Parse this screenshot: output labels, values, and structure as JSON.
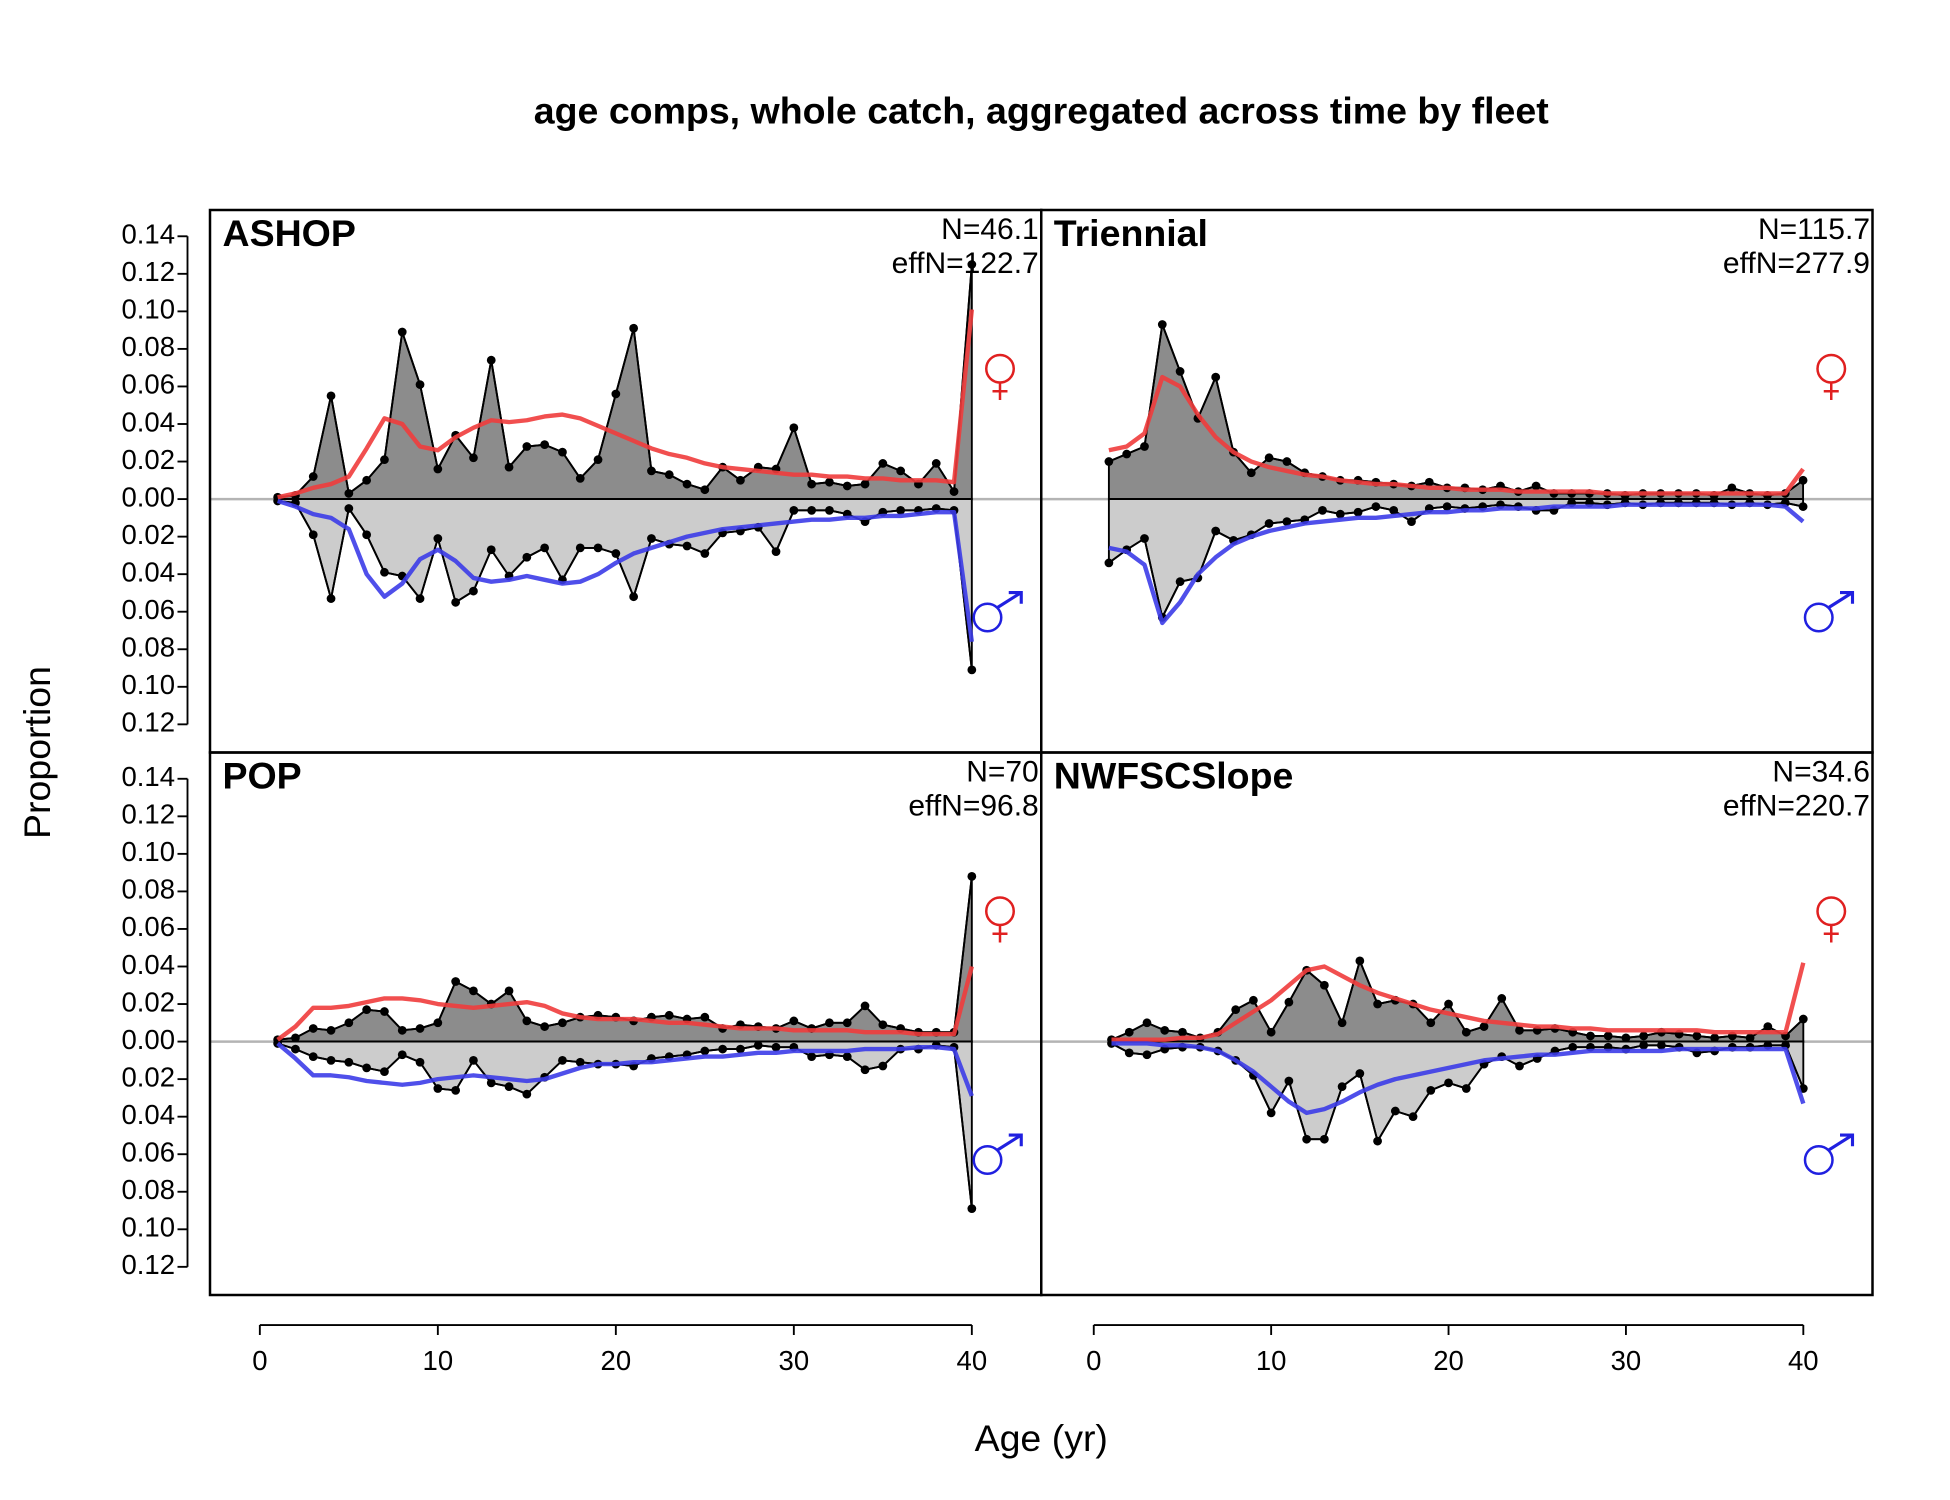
{
  "title": "age comps, whole catch, aggregated across time by fleet",
  "x_label": "Age (yr)",
  "y_label": "Proportion",
  "chart_data": [
    {
      "type": "area",
      "title": "ASHOP",
      "annotations": [
        "N=46.1",
        "effN=122.7"
      ],
      "xlim": [
        -2.8,
        43.9
      ],
      "ylim": [
        -0.135,
        0.154
      ],
      "yticks": [
        0.14,
        0.12,
        {
          "value": 0.1,
          "label": "0.10"
        },
        0.08,
        0.06,
        0.04,
        0.02,
        {
          "value": 0,
          "label": "0.00"
        },
        {
          "value": -0.02,
          "label": "0.02"
        },
        {
          "value": -0.04,
          "label": "0.04"
        },
        {
          "value": -0.06,
          "label": "0.06"
        },
        {
          "value": -0.08,
          "label": "0.08"
        },
        {
          "value": -0.1,
          "label": "0.10"
        },
        {
          "value": -0.12,
          "label": "0.12"
        }
      ],
      "x": [
        1,
        2,
        3,
        4,
        5,
        6,
        7,
        8,
        9,
        10,
        11,
        12,
        13,
        14,
        15,
        16,
        17,
        18,
        19,
        20,
        21,
        22,
        23,
        24,
        25,
        26,
        27,
        28,
        29,
        30,
        31,
        32,
        33,
        34,
        35,
        36,
        37,
        38,
        39,
        40
      ],
      "series": [
        {
          "style": "area",
          "color": "#8c8c8c",
          "values": [
            0.001,
            0.002,
            0.012,
            0.055,
            0.003,
            0.01,
            0.021,
            0.089,
            0.061,
            0.016,
            0.034,
            0.022,
            0.074,
            0.017,
            0.028,
            0.029,
            0.025,
            0.011,
            0.021,
            0.056,
            0.091,
            0.015,
            0.013,
            0.008,
            0.005,
            0.017,
            0.01,
            0.017,
            0.016,
            0.038,
            0.008,
            0.009,
            0.007,
            0.008,
            0.019,
            0.015,
            0.008,
            0.019,
            0.004,
            0.125
          ]
        },
        {
          "style": "area",
          "color": "#cccccc",
          "values": [
            -0.001,
            -0.002,
            -0.019,
            -0.053,
            -0.005,
            -0.019,
            -0.039,
            -0.041,
            -0.053,
            -0.021,
            -0.055,
            -0.049,
            -0.027,
            -0.041,
            -0.031,
            -0.026,
            -0.043,
            -0.026,
            -0.026,
            -0.029,
            -0.052,
            -0.021,
            -0.024,
            -0.025,
            -0.029,
            -0.018,
            -0.017,
            -0.015,
            -0.028,
            -0.006,
            -0.006,
            -0.006,
            -0.008,
            -0.012,
            -0.007,
            -0.006,
            -0.006,
            -0.005,
            -0.006,
            -0.091
          ]
        },
        {
          "style": "line",
          "color": "#f03c3c",
          "values": [
            0.001,
            0.003,
            0.006,
            0.008,
            0.012,
            0.027,
            0.043,
            0.04,
            0.028,
            0.026,
            0.033,
            0.038,
            0.042,
            0.041,
            0.042,
            0.044,
            0.045,
            0.043,
            0.039,
            0.035,
            0.031,
            0.027,
            0.024,
            0.022,
            0.019,
            0.017,
            0.016,
            0.015,
            0.014,
            0.013,
            0.013,
            0.012,
            0.012,
            0.011,
            0.011,
            0.01,
            0.01,
            0.01,
            0.009,
            0.101
          ]
        },
        {
          "style": "line",
          "color": "#3c3ce8",
          "values": [
            -0.001,
            -0.004,
            -0.008,
            -0.01,
            -0.016,
            -0.04,
            -0.052,
            -0.045,
            -0.032,
            -0.027,
            -0.033,
            -0.042,
            -0.044,
            -0.043,
            -0.041,
            -0.043,
            -0.045,
            -0.044,
            -0.04,
            -0.034,
            -0.029,
            -0.026,
            -0.023,
            -0.02,
            -0.018,
            -0.016,
            -0.015,
            -0.014,
            -0.013,
            -0.012,
            -0.011,
            -0.011,
            -0.01,
            -0.01,
            -0.009,
            -0.009,
            -0.008,
            -0.007,
            -0.007,
            -0.076
          ]
        }
      ]
    },
    {
      "type": "area",
      "title": "Triennial",
      "annotations": [
        "N=115.7",
        "effN=277.9"
      ],
      "xlim": [
        -2.8,
        43.9
      ],
      "ylim": [
        -0.135,
        0.154
      ],
      "x": [
        1,
        2,
        3,
        4,
        5,
        6,
        7,
        8,
        9,
        10,
        11,
        12,
        13,
        14,
        15,
        16,
        17,
        18,
        19,
        20,
        21,
        22,
        23,
        24,
        25,
        26,
        27,
        28,
        29,
        30,
        31,
        32,
        33,
        34,
        35,
        36,
        37,
        38,
        39,
        40
      ],
      "series": [
        {
          "style": "area",
          "color": "#8c8c8c",
          "values": [
            0.02,
            0.024,
            0.028,
            0.093,
            0.068,
            0.043,
            0.065,
            0.025,
            0.014,
            0.022,
            0.02,
            0.014,
            0.012,
            0.01,
            0.01,
            0.009,
            0.008,
            0.007,
            0.009,
            0.006,
            0.006,
            0.005,
            0.007,
            0.004,
            0.007,
            0.003,
            0.003,
            0.003,
            0.003,
            0.002,
            0.003,
            0.003,
            0.003,
            0.003,
            0.002,
            0.006,
            0.003,
            0.002,
            0.003,
            0.01
          ]
        },
        {
          "style": "area",
          "color": "#cccccc",
          "values": [
            -0.034,
            -0.027,
            -0.021,
            -0.063,
            -0.044,
            -0.042,
            -0.017,
            -0.022,
            -0.019,
            -0.013,
            -0.012,
            -0.011,
            -0.006,
            -0.008,
            -0.007,
            -0.004,
            -0.006,
            -0.012,
            -0.005,
            -0.004,
            -0.005,
            -0.004,
            -0.003,
            -0.004,
            -0.006,
            -0.006,
            -0.002,
            -0.002,
            -0.003,
            -0.002,
            -0.003,
            -0.002,
            -0.002,
            -0.002,
            -0.002,
            -0.003,
            -0.002,
            -0.003,
            -0.002,
            -0.004
          ]
        },
        {
          "style": "line",
          "color": "#f03c3c",
          "values": [
            0.026,
            0.028,
            0.035,
            0.065,
            0.06,
            0.045,
            0.033,
            0.025,
            0.02,
            0.017,
            0.015,
            0.013,
            0.012,
            0.01,
            0.009,
            0.008,
            0.008,
            0.007,
            0.006,
            0.006,
            0.005,
            0.005,
            0.005,
            0.004,
            0.004,
            0.004,
            0.004,
            0.004,
            0.003,
            0.003,
            0.003,
            0.003,
            0.003,
            0.003,
            0.003,
            0.003,
            0.003,
            0.003,
            0.003,
            0.016
          ]
        },
        {
          "style": "line",
          "color": "#3c3ce8",
          "values": [
            -0.026,
            -0.028,
            -0.035,
            -0.066,
            -0.055,
            -0.04,
            -0.031,
            -0.024,
            -0.02,
            -0.017,
            -0.015,
            -0.013,
            -0.012,
            -0.011,
            -0.01,
            -0.01,
            -0.009,
            -0.008,
            -0.007,
            -0.007,
            -0.006,
            -0.006,
            -0.005,
            -0.005,
            -0.005,
            -0.004,
            -0.004,
            -0.004,
            -0.004,
            -0.003,
            -0.003,
            -0.003,
            -0.003,
            -0.003,
            -0.003,
            -0.003,
            -0.003,
            -0.003,
            -0.004,
            -0.012
          ]
        }
      ]
    },
    {
      "type": "area",
      "title": "POP",
      "annotations": [
        "N=70",
        "effN=96.8"
      ],
      "xlim": [
        -2.8,
        43.9
      ],
      "ylim": [
        -0.135,
        0.154
      ],
      "yticks": [
        0.14,
        0.12,
        {
          "value": 0.1,
          "label": "0.10"
        },
        0.08,
        0.06,
        0.04,
        0.02,
        {
          "value": 0,
          "label": "0.00"
        },
        {
          "value": -0.02,
          "label": "0.02"
        },
        {
          "value": -0.04,
          "label": "0.04"
        },
        {
          "value": -0.06,
          "label": "0.06"
        },
        {
          "value": -0.08,
          "label": "0.08"
        },
        {
          "value": -0.1,
          "label": "0.10"
        },
        {
          "value": -0.12,
          "label": "0.12"
        }
      ],
      "xticks": [
        0,
        10,
        20,
        30,
        40
      ],
      "x": [
        1,
        2,
        3,
        4,
        5,
        6,
        7,
        8,
        9,
        10,
        11,
        12,
        13,
        14,
        15,
        16,
        17,
        18,
        19,
        20,
        21,
        22,
        23,
        24,
        25,
        26,
        27,
        28,
        29,
        30,
        31,
        32,
        33,
        34,
        35,
        36,
        37,
        38,
        39,
        40
      ],
      "series": [
        {
          "style": "area",
          "color": "#8c8c8c",
          "values": [
            0.001,
            0.002,
            0.007,
            0.006,
            0.01,
            0.017,
            0.016,
            0.006,
            0.007,
            0.01,
            0.032,
            0.027,
            0.02,
            0.027,
            0.011,
            0.008,
            0.01,
            0.013,
            0.014,
            0.013,
            0.011,
            0.013,
            0.014,
            0.012,
            0.013,
            0.007,
            0.009,
            0.008,
            0.007,
            0.011,
            0.007,
            0.01,
            0.01,
            0.019,
            0.009,
            0.007,
            0.005,
            0.005,
            0.005,
            0.088
          ]
        },
        {
          "style": "area",
          "color": "#cccccc",
          "values": [
            -0.001,
            -0.004,
            -0.008,
            -0.01,
            -0.011,
            -0.014,
            -0.016,
            -0.007,
            -0.011,
            -0.025,
            -0.026,
            -0.01,
            -0.022,
            -0.024,
            -0.028,
            -0.019,
            -0.01,
            -0.011,
            -0.012,
            -0.012,
            -0.013,
            -0.009,
            -0.008,
            -0.007,
            -0.005,
            -0.004,
            -0.004,
            -0.002,
            -0.003,
            -0.003,
            -0.008,
            -0.007,
            -0.008,
            -0.015,
            -0.013,
            -0.004,
            -0.004,
            -0.002,
            -0.003,
            -0.089
          ]
        },
        {
          "style": "line",
          "color": "#f03c3c",
          "values": [
            0.001,
            0.008,
            0.018,
            0.018,
            0.019,
            0.021,
            0.023,
            0.023,
            0.022,
            0.02,
            0.019,
            0.018,
            0.019,
            0.02,
            0.021,
            0.019,
            0.015,
            0.013,
            0.012,
            0.012,
            0.012,
            0.011,
            0.01,
            0.01,
            0.009,
            0.008,
            0.007,
            0.007,
            0.007,
            0.006,
            0.006,
            0.006,
            0.006,
            0.005,
            0.005,
            0.005,
            0.004,
            0.004,
            0.004,
            0.04
          ]
        },
        {
          "style": "line",
          "color": "#3c3ce8",
          "values": [
            -0.001,
            -0.009,
            -0.018,
            -0.018,
            -0.019,
            -0.021,
            -0.022,
            -0.023,
            -0.022,
            -0.02,
            -0.019,
            -0.018,
            -0.019,
            -0.02,
            -0.021,
            -0.02,
            -0.017,
            -0.014,
            -0.012,
            -0.012,
            -0.011,
            -0.011,
            -0.01,
            -0.009,
            -0.008,
            -0.008,
            -0.007,
            -0.006,
            -0.006,
            -0.005,
            -0.005,
            -0.005,
            -0.005,
            -0.004,
            -0.004,
            -0.004,
            -0.003,
            -0.003,
            -0.004,
            -0.029
          ]
        }
      ]
    },
    {
      "type": "area",
      "title": "NWFSCSlope",
      "annotations": [
        "N=34.6",
        "effN=220.7"
      ],
      "xlim": [
        -2.96,
        43.9
      ],
      "ylim": [
        -0.135,
        0.154
      ],
      "xticks": [
        0,
        10,
        20,
        30,
        40
      ],
      "x": [
        1,
        2,
        3,
        4,
        5,
        6,
        7,
        8,
        9,
        10,
        11,
        12,
        13,
        14,
        15,
        16,
        17,
        18,
        19,
        20,
        21,
        22,
        23,
        24,
        25,
        26,
        27,
        28,
        29,
        30,
        31,
        32,
        33,
        34,
        35,
        36,
        37,
        38,
        39,
        40
      ],
      "series": [
        {
          "style": "area",
          "color": "#8c8c8c",
          "values": [
            0.001,
            0.005,
            0.01,
            0.006,
            0.005,
            0.002,
            0.005,
            0.017,
            0.022,
            0.005,
            0.021,
            0.038,
            0.03,
            0.01,
            0.043,
            0.02,
            0.022,
            0.02,
            0.01,
            0.02,
            0.005,
            0.008,
            0.023,
            0.006,
            0.006,
            0.007,
            0.005,
            0.003,
            0.003,
            0.002,
            0.003,
            0.005,
            0.004,
            0.003,
            0.002,
            0.003,
            0.002,
            0.008,
            0.003,
            0.012
          ]
        },
        {
          "style": "area",
          "color": "#cccccc",
          "values": [
            -0.001,
            -0.006,
            -0.007,
            -0.004,
            -0.003,
            -0.003,
            -0.005,
            -0.01,
            -0.018,
            -0.038,
            -0.021,
            -0.052,
            -0.052,
            -0.024,
            -0.017,
            -0.053,
            -0.037,
            -0.04,
            -0.026,
            -0.022,
            -0.025,
            -0.012,
            -0.008,
            -0.013,
            -0.009,
            -0.005,
            -0.003,
            -0.003,
            -0.003,
            -0.004,
            -0.002,
            -0.002,
            -0.003,
            -0.006,
            -0.005,
            -0.003,
            -0.003,
            -0.002,
            -0.002,
            -0.025
          ]
        },
        {
          "style": "line",
          "color": "#f03c3c",
          "values": [
            0.001,
            0.001,
            0.001,
            0.001,
            0.002,
            0.002,
            0.004,
            0.01,
            0.016,
            0.022,
            0.03,
            0.038,
            0.04,
            0.035,
            0.03,
            0.026,
            0.023,
            0.02,
            0.017,
            0.015,
            0.013,
            0.011,
            0.01,
            0.009,
            0.008,
            0.008,
            0.007,
            0.007,
            0.006,
            0.006,
            0.006,
            0.006,
            0.006,
            0.006,
            0.005,
            0.005,
            0.005,
            0.005,
            0.005,
            0.042
          ]
        },
        {
          "style": "line",
          "color": "#3c3ce8",
          "values": [
            -0.001,
            -0.001,
            -0.001,
            -0.002,
            -0.002,
            -0.003,
            -0.005,
            -0.01,
            -0.016,
            -0.024,
            -0.032,
            -0.038,
            -0.036,
            -0.032,
            -0.027,
            -0.023,
            -0.02,
            -0.018,
            -0.016,
            -0.014,
            -0.012,
            -0.01,
            -0.009,
            -0.008,
            -0.007,
            -0.007,
            -0.006,
            -0.005,
            -0.005,
            -0.005,
            -0.005,
            -0.005,
            -0.004,
            -0.004,
            -0.004,
            -0.004,
            -0.004,
            -0.004,
            -0.004,
            -0.033
          ]
        }
      ]
    }
  ]
}
